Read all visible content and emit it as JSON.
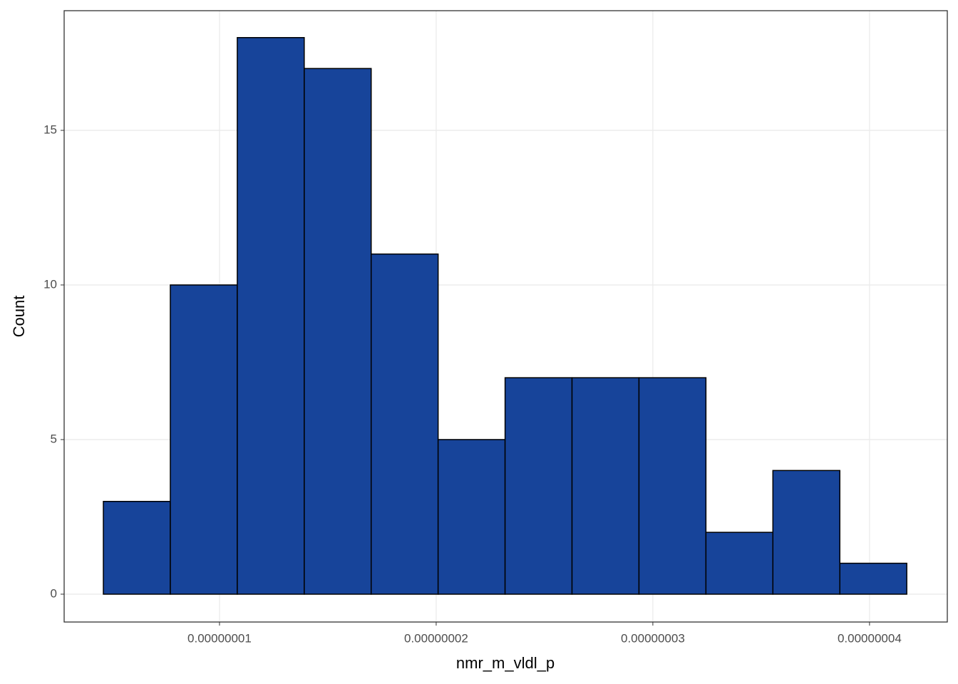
{
  "chart_data": {
    "type": "histogram",
    "xlabel": "nmr_m_vldl_p",
    "ylabel": "Count",
    "bins": [
      4.64e-09,
      7.73e-09,
      1.082e-08,
      1.391e-08,
      1.7e-08,
      2.009e-08,
      2.318e-08,
      2.627e-08,
      2.936e-08,
      3.245e-08,
      3.554e-08,
      3.863e-08,
      4.172e-08
    ],
    "counts": [
      3,
      10,
      18,
      17,
      11,
      5,
      7,
      7,
      7,
      2,
      4,
      1
    ],
    "color": "#17449a",
    "edgecolor": "#000000",
    "xlim": [
      2.83e-09,
      4.359e-08
    ],
    "xticks": [
      {
        "value": 1e-08,
        "label": "0.00000001"
      },
      {
        "value": 2e-08,
        "label": "0.00000002"
      },
      {
        "value": 3e-08,
        "label": "0.00000003"
      },
      {
        "value": 4e-08,
        "label": "0.00000004"
      }
    ],
    "ylim": [
      -0.9,
      18.87
    ],
    "yticks": [
      0,
      5,
      10,
      15
    ],
    "grid": true
  }
}
